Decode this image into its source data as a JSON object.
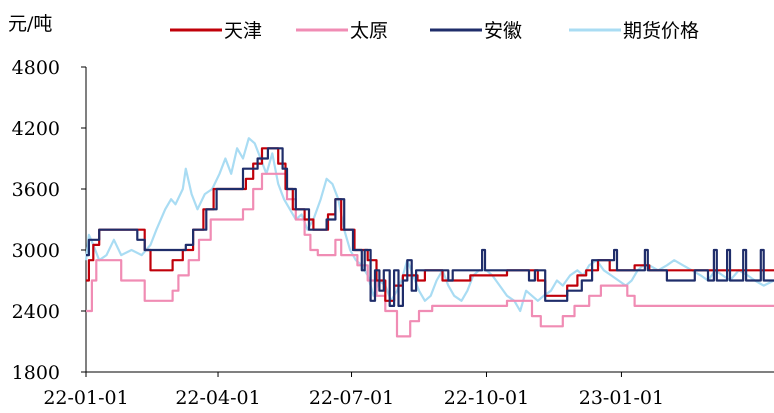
{
  "chart_data": {
    "type": "line",
    "yunit": "元/吨",
    "ylim": [
      1800,
      4800
    ],
    "yticks": [
      1800,
      2400,
      3000,
      3600,
      4200,
      4800
    ],
    "xlim": [
      "2022-01-01",
      "2023-04-15"
    ],
    "xticks": [
      {
        "date": "2022-01-01",
        "label": "22-01-01"
      },
      {
        "date": "2022-04-01",
        "label": "22-04-01"
      },
      {
        "date": "2022-07-01",
        "label": "22-07-01"
      },
      {
        "date": "2022-10-01",
        "label": "22-10-01"
      },
      {
        "date": "2023-01-01",
        "label": "23-01-01"
      }
    ],
    "grid": false,
    "legend_position": "top",
    "series": [
      {
        "name": "天津",
        "color": "#c0000a",
        "step": true,
        "points": [
          [
            "2022-01-01",
            2700
          ],
          [
            "2022-01-03",
            2900
          ],
          [
            "2022-01-06",
            3050
          ],
          [
            "2022-01-10",
            3200
          ],
          [
            "2022-02-10",
            3000
          ],
          [
            "2022-02-14",
            2800
          ],
          [
            "2022-03-01",
            2900
          ],
          [
            "2022-03-08",
            3000
          ],
          [
            "2022-03-15",
            3200
          ],
          [
            "2022-03-22",
            3400
          ],
          [
            "2022-03-29",
            3600
          ],
          [
            "2022-04-20",
            3700
          ],
          [
            "2022-04-25",
            3850
          ],
          [
            "2022-05-01",
            4000
          ],
          [
            "2022-05-12",
            3850
          ],
          [
            "2022-05-17",
            3600
          ],
          [
            "2022-05-22",
            3400
          ],
          [
            "2022-05-30",
            3300
          ],
          [
            "2022-06-05",
            3200
          ],
          [
            "2022-06-15",
            3350
          ],
          [
            "2022-06-20",
            3500
          ],
          [
            "2022-06-24",
            3200
          ],
          [
            "2022-07-03",
            3000
          ],
          [
            "2022-07-12",
            2900
          ],
          [
            "2022-07-18",
            2700
          ],
          [
            "2022-07-24",
            2500
          ],
          [
            "2022-07-30",
            2650
          ],
          [
            "2022-08-05",
            2750
          ],
          [
            "2022-08-15",
            2700
          ],
          [
            "2022-08-20",
            2800
          ],
          [
            "2022-09-01",
            2700
          ],
          [
            "2022-09-20",
            2750
          ],
          [
            "2022-10-15",
            2800
          ],
          [
            "2022-11-05",
            2700
          ],
          [
            "2022-11-10",
            2550
          ],
          [
            "2022-11-25",
            2650
          ],
          [
            "2022-12-02",
            2750
          ],
          [
            "2022-12-08",
            2800
          ],
          [
            "2022-12-16",
            2900
          ],
          [
            "2022-12-24",
            2800
          ],
          [
            "2023-01-10",
            2850
          ],
          [
            "2023-01-20",
            2800
          ],
          [
            "2023-04-15",
            2800
          ]
        ]
      },
      {
        "name": "太原",
        "color": "#f08cb4",
        "step": true,
        "points": [
          [
            "2022-01-01",
            2400
          ],
          [
            "2022-01-05",
            2700
          ],
          [
            "2022-01-08",
            2900
          ],
          [
            "2022-01-25",
            2700
          ],
          [
            "2022-02-10",
            2500
          ],
          [
            "2022-03-01",
            2600
          ],
          [
            "2022-03-05",
            2750
          ],
          [
            "2022-03-12",
            2900
          ],
          [
            "2022-03-19",
            3100
          ],
          [
            "2022-03-27",
            3300
          ],
          [
            "2022-04-18",
            3400
          ],
          [
            "2022-04-25",
            3600
          ],
          [
            "2022-05-01",
            3750
          ],
          [
            "2022-05-18",
            3500
          ],
          [
            "2022-05-24",
            3300
          ],
          [
            "2022-05-30",
            3150
          ],
          [
            "2022-06-03",
            3000
          ],
          [
            "2022-06-08",
            2950
          ],
          [
            "2022-06-20",
            3100
          ],
          [
            "2022-06-24",
            2950
          ],
          [
            "2022-07-05",
            2850
          ],
          [
            "2022-07-12",
            2700
          ],
          [
            "2022-07-18",
            2550
          ],
          [
            "2022-07-24",
            2400
          ],
          [
            "2022-08-01",
            2150
          ],
          [
            "2022-08-10",
            2300
          ],
          [
            "2022-08-16",
            2400
          ],
          [
            "2022-08-25",
            2450
          ],
          [
            "2022-09-20",
            2450
          ],
          [
            "2022-10-15",
            2500
          ],
          [
            "2022-11-01",
            2350
          ],
          [
            "2022-11-07",
            2250
          ],
          [
            "2022-11-22",
            2350
          ],
          [
            "2022-11-30",
            2450
          ],
          [
            "2022-12-10",
            2550
          ],
          [
            "2022-12-18",
            2650
          ],
          [
            "2023-01-05",
            2550
          ],
          [
            "2023-01-10",
            2450
          ],
          [
            "2023-04-15",
            2450
          ]
        ]
      },
      {
        "name": "安徽",
        "color": "#1f2d6a",
        "step": true,
        "points": [
          [
            "2022-01-01",
            2950
          ],
          [
            "2022-01-03",
            3100
          ],
          [
            "2022-01-10",
            3200
          ],
          [
            "2022-02-05",
            3100
          ],
          [
            "2022-02-10",
            3000
          ],
          [
            "2022-03-10",
            3050
          ],
          [
            "2022-03-15",
            3200
          ],
          [
            "2022-03-24",
            3400
          ],
          [
            "2022-03-31",
            3600
          ],
          [
            "2022-04-18",
            3800
          ],
          [
            "2022-04-28",
            3900
          ],
          [
            "2022-05-05",
            4000
          ],
          [
            "2022-05-15",
            3800
          ],
          [
            "2022-05-18",
            3600
          ],
          [
            "2022-05-24",
            3400
          ],
          [
            "2022-06-02",
            3200
          ],
          [
            "2022-06-14",
            3300
          ],
          [
            "2022-06-20",
            3500
          ],
          [
            "2022-06-26",
            3200
          ],
          [
            "2022-07-02",
            3000
          ],
          [
            "2022-07-08",
            2800
          ],
          [
            "2022-07-10",
            3000
          ],
          [
            "2022-07-14",
            2500
          ],
          [
            "2022-07-17",
            2800
          ],
          [
            "2022-07-20",
            2600
          ],
          [
            "2022-07-23",
            2800
          ],
          [
            "2022-07-27",
            2450
          ],
          [
            "2022-07-30",
            2800
          ],
          [
            "2022-08-02",
            2450
          ],
          [
            "2022-08-05",
            2700
          ],
          [
            "2022-08-08",
            2900
          ],
          [
            "2022-08-11",
            2600
          ],
          [
            "2022-08-14",
            2800
          ],
          [
            "2022-09-05",
            2700
          ],
          [
            "2022-09-08",
            2800
          ],
          [
            "2022-09-28",
            3000
          ],
          [
            "2022-09-30",
            2800
          ],
          [
            "2022-10-20",
            2800
          ],
          [
            "2022-10-30",
            2700
          ],
          [
            "2022-11-03",
            2800
          ],
          [
            "2022-11-10",
            2500
          ],
          [
            "2022-11-25",
            2600
          ],
          [
            "2022-12-05",
            2700
          ],
          [
            "2022-12-12",
            2900
          ],
          [
            "2022-12-22",
            2900
          ],
          [
            "2022-12-27",
            3000
          ],
          [
            "2022-12-29",
            2800
          ],
          [
            "2023-01-15",
            2800
          ],
          [
            "2023-01-17",
            3000
          ],
          [
            "2023-01-19",
            2800
          ],
          [
            "2023-02-01",
            2700
          ],
          [
            "2023-02-20",
            2800
          ],
          [
            "2023-03-01",
            2700
          ],
          [
            "2023-03-05",
            3000
          ],
          [
            "2023-03-07",
            2700
          ],
          [
            "2023-03-14",
            3000
          ],
          [
            "2023-03-16",
            2700
          ],
          [
            "2023-03-25",
            3000
          ],
          [
            "2023-03-27",
            2700
          ],
          [
            "2023-04-06",
            3000
          ],
          [
            "2023-04-08",
            2700
          ],
          [
            "2023-04-15",
            2700
          ]
        ]
      },
      {
        "name": "期货价格",
        "color": "#a9dcf3",
        "step": false,
        "points": [
          [
            "2022-01-01",
            2900
          ],
          [
            "2022-01-03",
            3150
          ],
          [
            "2022-01-06",
            3050
          ],
          [
            "2022-01-10",
            2900
          ],
          [
            "2022-01-15",
            2950
          ],
          [
            "2022-01-20",
            3100
          ],
          [
            "2022-01-25",
            2950
          ],
          [
            "2022-02-01",
            3000
          ],
          [
            "2022-02-08",
            2950
          ],
          [
            "2022-02-14",
            3050
          ],
          [
            "2022-02-18",
            3200
          ],
          [
            "2022-02-24",
            3400
          ],
          [
            "2022-02-28",
            3500
          ],
          [
            "2022-03-03",
            3450
          ],
          [
            "2022-03-08",
            3600
          ],
          [
            "2022-03-10",
            3800
          ],
          [
            "2022-03-14",
            3550
          ],
          [
            "2022-03-18",
            3400
          ],
          [
            "2022-03-23",
            3550
          ],
          [
            "2022-03-28",
            3600
          ],
          [
            "2022-04-02",
            3750
          ],
          [
            "2022-04-06",
            3900
          ],
          [
            "2022-04-10",
            3750
          ],
          [
            "2022-04-14",
            4000
          ],
          [
            "2022-04-18",
            3900
          ],
          [
            "2022-04-22",
            4100
          ],
          [
            "2022-04-26",
            4050
          ],
          [
            "2022-04-30",
            3900
          ],
          [
            "2022-05-04",
            3750
          ],
          [
            "2022-05-08",
            3950
          ],
          [
            "2022-05-12",
            3650
          ],
          [
            "2022-05-16",
            3500
          ],
          [
            "2022-05-20",
            3400
          ],
          [
            "2022-05-24",
            3300
          ],
          [
            "2022-05-28",
            3350
          ],
          [
            "2022-06-01",
            3200
          ],
          [
            "2022-06-05",
            3300
          ],
          [
            "2022-06-10",
            3500
          ],
          [
            "2022-06-14",
            3700
          ],
          [
            "2022-06-18",
            3650
          ],
          [
            "2022-06-22",
            3500
          ],
          [
            "2022-06-26",
            3200
          ],
          [
            "2022-06-30",
            3000
          ],
          [
            "2022-07-04",
            2900
          ],
          [
            "2022-07-08",
            2850
          ],
          [
            "2022-07-12",
            2750
          ],
          [
            "2022-07-16",
            2550
          ],
          [
            "2022-07-20",
            2700
          ],
          [
            "2022-07-24",
            2650
          ],
          [
            "2022-07-28",
            2500
          ],
          [
            "2022-08-01",
            2600
          ],
          [
            "2022-08-04",
            2700
          ],
          [
            "2022-08-08",
            2900
          ],
          [
            "2022-08-12",
            2750
          ],
          [
            "2022-08-16",
            2600
          ],
          [
            "2022-08-20",
            2500
          ],
          [
            "2022-08-24",
            2550
          ],
          [
            "2022-08-28",
            2700
          ],
          [
            "2022-09-01",
            2800
          ],
          [
            "2022-09-05",
            2650
          ],
          [
            "2022-09-09",
            2550
          ],
          [
            "2022-09-14",
            2500
          ],
          [
            "2022-09-18",
            2600
          ],
          [
            "2022-09-22",
            2750
          ],
          [
            "2022-09-26",
            2800
          ],
          [
            "2022-10-01",
            2800
          ],
          [
            "2022-10-05",
            2750
          ],
          [
            "2022-10-10",
            2650
          ],
          [
            "2022-10-15",
            2550
          ],
          [
            "2022-10-20",
            2500
          ],
          [
            "2022-10-24",
            2400
          ],
          [
            "2022-10-28",
            2600
          ],
          [
            "2022-11-01",
            2550
          ],
          [
            "2022-11-05",
            2500
          ],
          [
            "2022-11-09",
            2550
          ],
          [
            "2022-11-14",
            2600
          ],
          [
            "2022-11-18",
            2700
          ],
          [
            "2022-11-22",
            2650
          ],
          [
            "2022-11-27",
            2750
          ],
          [
            "2022-12-02",
            2800
          ],
          [
            "2022-12-06",
            2750
          ],
          [
            "2022-12-10",
            2850
          ],
          [
            "2022-12-15",
            2900
          ],
          [
            "2022-12-20",
            2800
          ],
          [
            "2022-12-25",
            2750
          ],
          [
            "2022-12-30",
            2700
          ],
          [
            "2023-01-04",
            2650
          ],
          [
            "2023-01-08",
            2700
          ],
          [
            "2023-01-12",
            2800
          ],
          [
            "2023-01-16",
            2850
          ],
          [
            "2023-01-20",
            2850
          ],
          [
            "2023-01-26",
            2800
          ],
          [
            "2023-02-01",
            2850
          ],
          [
            "2023-02-06",
            2900
          ],
          [
            "2023-02-12",
            2850
          ],
          [
            "2023-02-18",
            2800
          ],
          [
            "2023-02-24",
            2750
          ],
          [
            "2023-03-01",
            2700
          ],
          [
            "2023-03-06",
            2800
          ],
          [
            "2023-03-11",
            2750
          ],
          [
            "2023-03-16",
            2700
          ],
          [
            "2023-03-22",
            2800
          ],
          [
            "2023-03-28",
            2750
          ],
          [
            "2023-04-02",
            2700
          ],
          [
            "2023-04-08",
            2650
          ],
          [
            "2023-04-15",
            2700
          ]
        ]
      }
    ]
  }
}
